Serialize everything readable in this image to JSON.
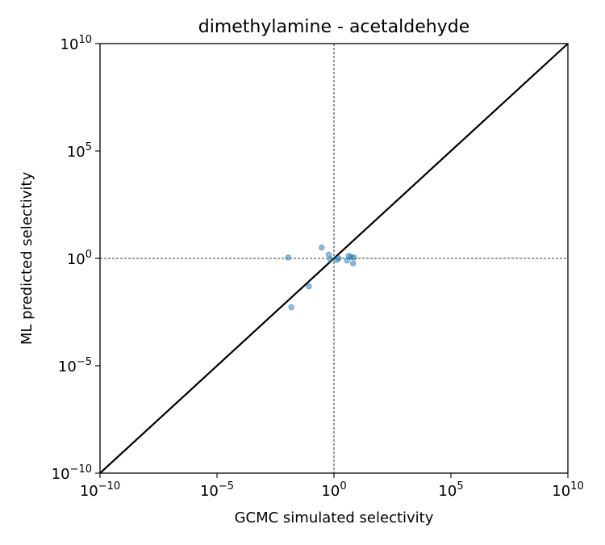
{
  "chart_data": {
    "type": "scatter",
    "title": "dimethylamine - acetaldehyde",
    "xlabel": "GCMC simulated selectivity",
    "ylabel": "ML predicted selectivity",
    "xscale": "log",
    "yscale": "log",
    "xlim": [
      1e-10,
      10000000000.0
    ],
    "ylim": [
      1e-10,
      10000000000.0
    ],
    "x_ticks": [
      {
        "base": "10",
        "exp": "−10"
      },
      {
        "base": "10",
        "exp": "−5"
      },
      {
        "base": "10",
        "exp": "0"
      },
      {
        "base": "10",
        "exp": "5"
      },
      {
        "base": "10",
        "exp": "10"
      }
    ],
    "y_ticks": [
      {
        "base": "10",
        "exp": "−10"
      },
      {
        "base": "10",
        "exp": "−5"
      },
      {
        "base": "10",
        "exp": "0"
      },
      {
        "base": "10",
        "exp": "5"
      },
      {
        "base": "10",
        "exp": "10"
      }
    ],
    "grid": false,
    "reference_lines": {
      "diagonal": "y = x",
      "vertical_dashed_at_x": 1,
      "horizontal_dashed_at_y": 1
    },
    "point_color": "#1f77b4",
    "series": [
      {
        "points": [
          {
            "x": 0.011,
            "y": 1.1
          },
          {
            "x": 0.015,
            "y": 0.0053
          },
          {
            "x": 0.085,
            "y": 0.05
          },
          {
            "x": 0.3,
            "y": 3.2
          },
          {
            "x": 0.6,
            "y": 1.5
          },
          {
            "x": 0.7,
            "y": 0.9
          },
          {
            "x": 1.3,
            "y": 0.85
          },
          {
            "x": 1.6,
            "y": 1.0
          },
          {
            "x": 3.6,
            "y": 0.8
          },
          {
            "x": 4.3,
            "y": 1.3
          },
          {
            "x": 5.4,
            "y": 1.15
          },
          {
            "x": 6.6,
            "y": 0.58
          },
          {
            "x": 7.2,
            "y": 1.1
          }
        ]
      }
    ]
  }
}
